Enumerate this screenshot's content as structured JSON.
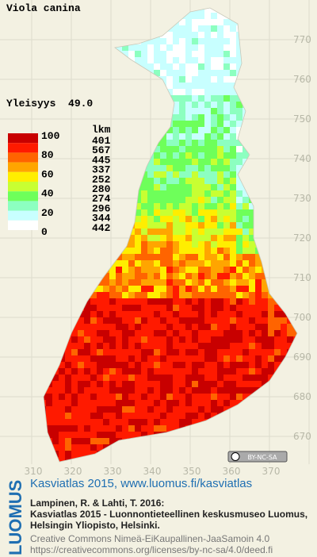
{
  "title": "Viola canina",
  "frequency": "Yleisyys  49.0",
  "legend": {
    "count_header": "lkm",
    "scale_labels": [
      "100",
      "80",
      "60",
      "40",
      "20",
      "0"
    ],
    "classes": [
      {
        "color": "#c80000",
        "count": "401"
      },
      {
        "color": "#ff1a00",
        "count": "567"
      },
      {
        "color": "#ff6400",
        "count": "445"
      },
      {
        "color": "#ffa500",
        "count": "337"
      },
      {
        "color": "#ffee00",
        "count": "252"
      },
      {
        "color": "#c8ff32",
        "count": "280"
      },
      {
        "color": "#6eff5a",
        "count": "274"
      },
      {
        "color": "#8cffc0",
        "count": "296"
      },
      {
        "color": "#c8ffff",
        "count": "344"
      },
      {
        "color": "#ffffff",
        "count": "442"
      }
    ]
  },
  "map": {
    "y_labels": [
      "770",
      "760",
      "750",
      "740",
      "730",
      "720",
      "710",
      "700",
      "690",
      "680",
      "670"
    ],
    "x_labels": [
      "310",
      "320",
      "330",
      "340",
      "350",
      "360",
      "370"
    ],
    "license_badge": "BY-NC-SA"
  },
  "footer": {
    "logo": "LUOMUS",
    "headline": "Kasviatlas 2015, www.luomus.fi/kasviatlas",
    "citation": [
      "Lampinen, R. & Lahti, T. 2016:",
      "Kasviatlas 2015 - Luonnontieteellinen keskusmuseo Luomus,",
      "Helsingin Yliopisto, Helsinki."
    ],
    "license": [
      "Creative Commons Nimeä-EiKaupallinen-JaaSamoin 4.0",
      "https://creativecommons.org/licenses/by-nc-sa/4.0/deed.fi"
    ]
  }
}
